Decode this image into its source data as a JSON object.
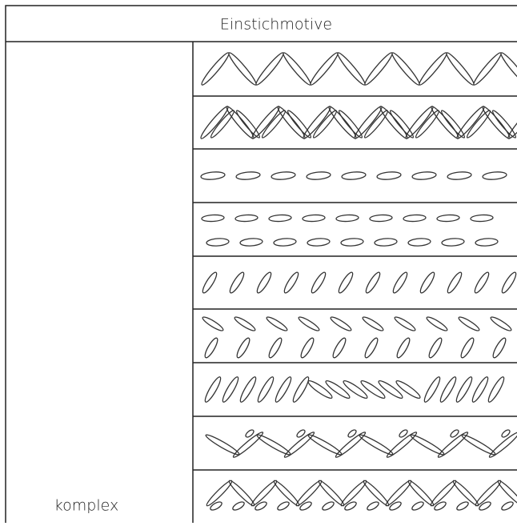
{
  "header": {
    "title": "Einstichmotive"
  },
  "table": {
    "row_label": "komplex"
  }
}
